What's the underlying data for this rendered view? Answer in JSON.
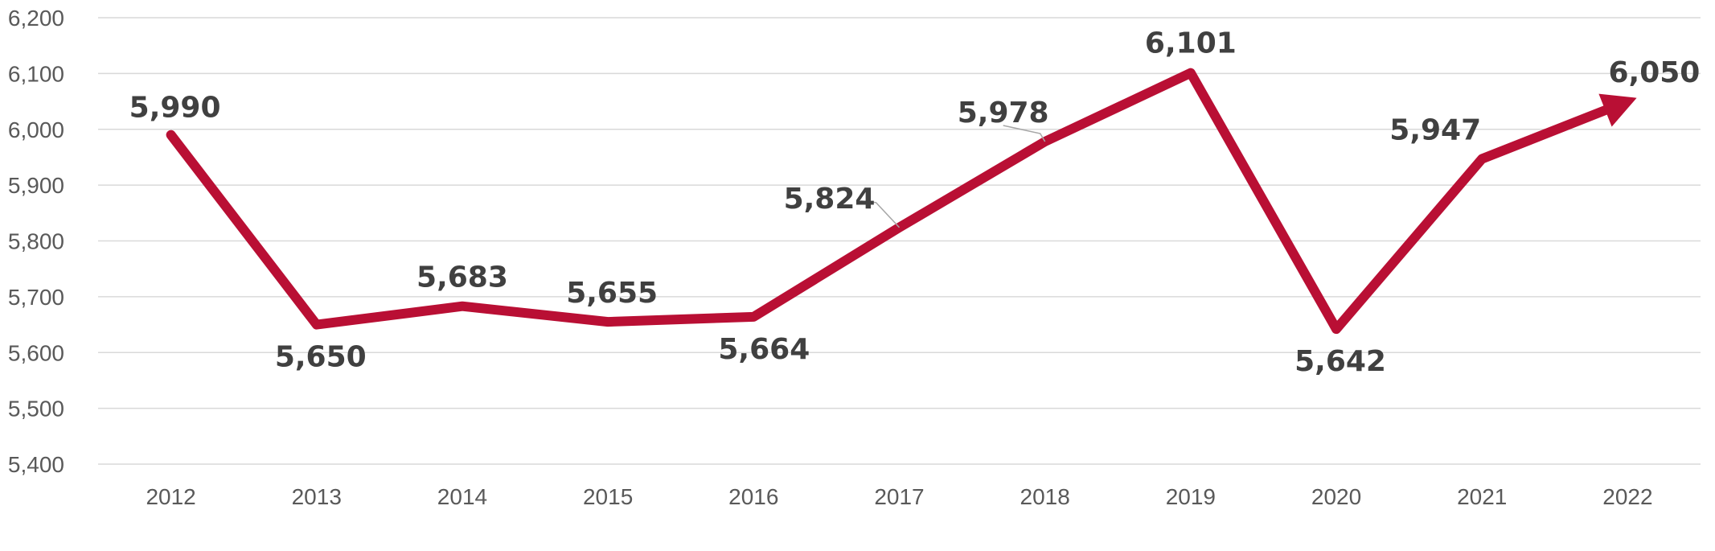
{
  "chart_data": {
    "type": "line",
    "title": "",
    "xlabel": "",
    "ylabel": "",
    "ylim": [
      5400,
      6200
    ],
    "yticks": [
      5400,
      5500,
      5600,
      5700,
      5800,
      5900,
      6000,
      6100,
      6200
    ],
    "ytick_labels": [
      "5,400",
      "5,500",
      "5,600",
      "5,700",
      "5,800",
      "5,900",
      "6,000",
      "6,100",
      "6,200"
    ],
    "grid": true,
    "legend": "none",
    "line_color": "#b90f34",
    "label_color": "#404040",
    "categories": [
      "2012",
      "2013",
      "2014",
      "2015",
      "2016",
      "2017",
      "2018",
      "2019",
      "2020",
      "2021",
      "2022"
    ],
    "values": [
      5990,
      5650,
      5683,
      5655,
      5664,
      5824,
      5978,
      6101,
      5642,
      5947,
      6050
    ],
    "data_labels": [
      "5,990",
      "5,650",
      "5,683",
      "5,655",
      "5,664",
      "5,824",
      "5,978",
      "6,101",
      "5,642",
      "5,947",
      "6,050"
    ]
  }
}
